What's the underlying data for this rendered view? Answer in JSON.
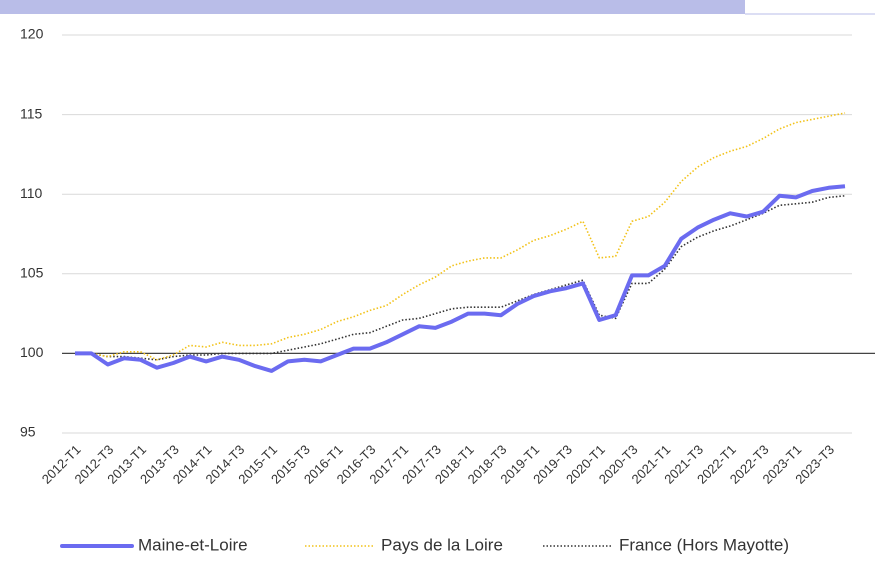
{
  "chart_data": {
    "type": "line",
    "categories": [
      "2012-T1",
      null,
      "2012-T3",
      null,
      "2013-T1",
      null,
      "2013-T3",
      null,
      "2014-T1",
      null,
      "2014-T3",
      null,
      "2015-T1",
      null,
      "2015-T3",
      null,
      "2016-T1",
      null,
      "2016-T3",
      null,
      "2017-T1",
      null,
      "2017-T3",
      null,
      "2018-T1",
      null,
      "2018-T3",
      null,
      "2019-T1",
      null,
      "2019-T3",
      null,
      "2020-T1",
      null,
      "2020-T3",
      null,
      "2021-T1",
      null,
      "2021-T3",
      null,
      "2022-T1",
      null,
      "2022-T3",
      null,
      "2023-T1",
      null,
      "2023-T3",
      null
    ],
    "series": [
      {
        "name": "Maine-et-Loire",
        "color": "#6b6bf0",
        "style": "solid",
        "values": [
          100,
          100.0,
          99.3,
          99.7,
          99.6,
          99.1,
          99.4,
          99.8,
          99.5,
          99.8,
          99.6,
          99.2,
          98.9,
          99.5,
          99.6,
          99.5,
          99.9,
          100.3,
          100.3,
          100.7,
          101.2,
          101.7,
          101.6,
          102.0,
          102.5,
          102.5,
          102.4,
          103.1,
          103.6,
          103.9,
          104.1,
          104.4,
          102.1,
          102.4,
          104.9,
          104.9,
          105.5,
          107.2,
          107.9,
          108.4,
          108.8,
          108.6,
          108.9,
          109.9,
          109.8,
          110.2,
          110.4,
          110.5
        ]
      },
      {
        "name": "Pays de la Loire",
        "color": "#f2c218",
        "style": "dotted",
        "values": [
          100,
          100,
          99.8,
          100.1,
          100.1,
          99.6,
          99.9,
          100.5,
          100.4,
          100.7,
          100.5,
          100.5,
          100.6,
          101.0,
          101.2,
          101.5,
          102.0,
          102.3,
          102.7,
          103.0,
          103.7,
          104.3,
          104.8,
          105.5,
          105.8,
          106.0,
          106.0,
          106.5,
          107.1,
          107.4,
          107.8,
          108.3,
          106.0,
          106.1,
          108.3,
          108.6,
          109.5,
          110.8,
          111.7,
          112.3,
          112.7,
          113.0,
          113.5,
          114.1,
          114.5,
          114.7,
          114.9,
          115.1
        ]
      },
      {
        "name": "France (Hors Mayotte)",
        "color": "#333333",
        "style": "dotted",
        "values": [
          100,
          100,
          99.8,
          99.8,
          99.7,
          99.6,
          99.8,
          99.9,
          99.9,
          100.0,
          100.0,
          100.0,
          100.0,
          100.2,
          100.4,
          100.6,
          100.9,
          101.2,
          101.3,
          101.7,
          102.1,
          102.2,
          102.5,
          102.8,
          102.9,
          102.9,
          102.9,
          103.3,
          103.7,
          104.0,
          104.3,
          104.6,
          102.4,
          102.2,
          104.4,
          104.4,
          105.3,
          106.7,
          107.3,
          107.7,
          108.0,
          108.4,
          108.8,
          109.3,
          109.4,
          109.5,
          109.8,
          109.9
        ]
      }
    ],
    "ylim": [
      95,
      120
    ],
    "yticks": [
      95,
      100,
      105,
      110,
      115,
      120
    ],
    "grid": true,
    "baseline": 100,
    "legend": "bottom"
  }
}
